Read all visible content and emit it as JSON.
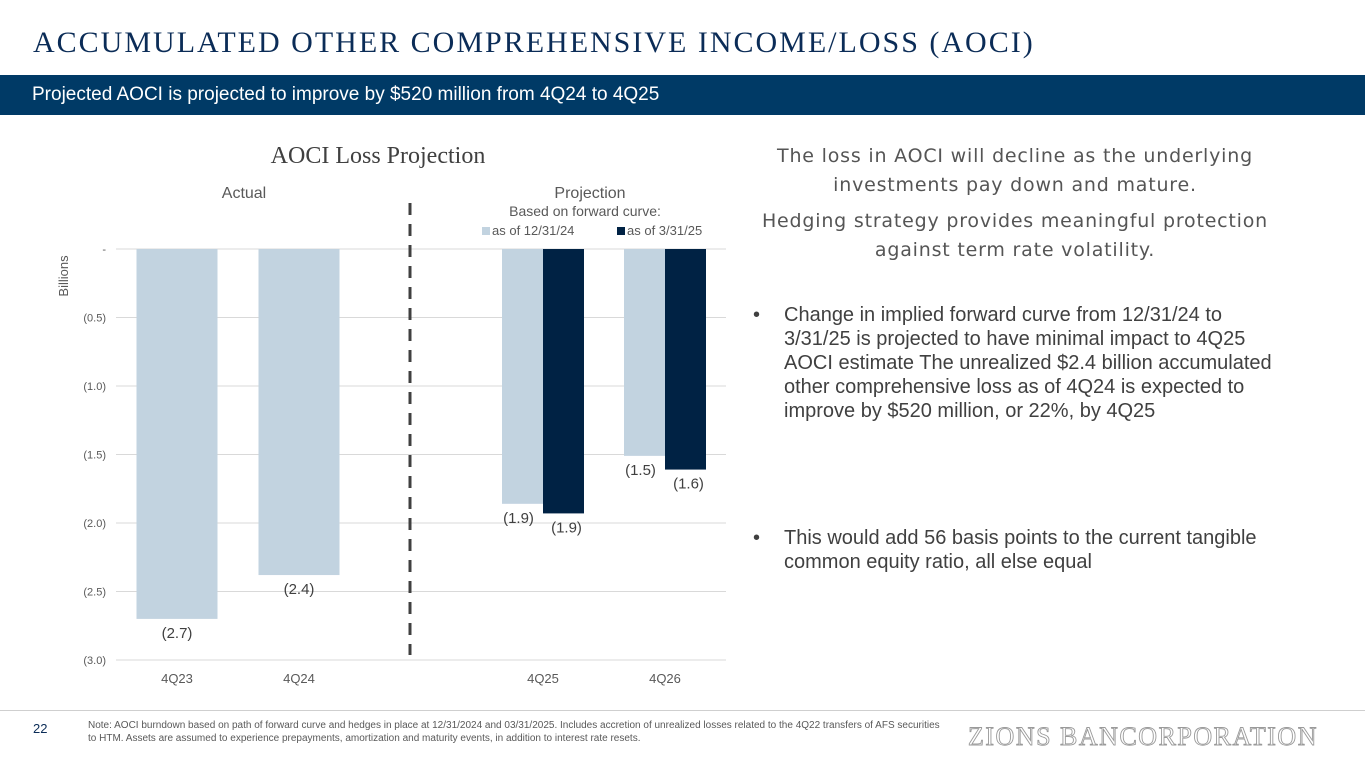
{
  "page": {
    "title": "ACCUMULATED OTHER COMPREHENSIVE INCOME/LOSS (AOCI)",
    "subtitle": "Projected AOCI is projected to improve by $520 million from 4Q24 to 4Q25",
    "page_number": "22",
    "footnote": "Note: AOCI burndown based on path of forward curve and hedges in place at 12/31/2024 and 03/31/2025. Includes accretion of unrealized losses related to the 4Q22 transfers of AFS securities to HTM. Assets are assumed to experience prepayments, amortization and maturity events, in addition to interest rate resets.",
    "logo_text": "ZIONS BANCORPORATION"
  },
  "right_panel": {
    "headline": "The loss in AOCI will decline as the underlying investments pay down and mature.",
    "subheadline": "Hedging strategy provides meaningful protection against term rate volatility.",
    "bullets": [
      "Change in implied forward curve from 12/31/24 to 3/31/25 is projected to have minimal impact to 4Q25 AOCI estimate The unrealized $2.4 billion accumulated other comprehensive loss as of 4Q24 is expected to improve by $520 million, or 22%, by 4Q25",
      "This would add 56 basis points to the current tangible common equity ratio, all else equal"
    ],
    "bullet_char": "•"
  },
  "chart_data": {
    "type": "bar",
    "title": "AOCI Loss Projection",
    "ylabel": "Billions",
    "ylim": [
      -3.0,
      0
    ],
    "yticks": [
      0,
      -0.5,
      -1.0,
      -1.5,
      -2.0,
      -2.5,
      -3.0
    ],
    "ytick_labels": [
      "-",
      "(0.5)",
      "(1.0)",
      "(1.5)",
      "(2.0)",
      "(2.5)",
      "(3.0)"
    ],
    "grid": true,
    "section_labels": {
      "actual": "Actual",
      "projection": "Projection"
    },
    "legend_title": "Based on forward curve:",
    "legend_placement": "top-right",
    "categories": [
      "4Q23",
      "4Q24",
      "4Q25",
      "4Q26"
    ],
    "actual": [
      {
        "category": "4Q23",
        "value": -2.7,
        "label": "(2.7)"
      },
      {
        "category": "4Q24",
        "value": -2.38,
        "label": "(2.4)"
      }
    ],
    "series": [
      {
        "name": "as of 12/31/24",
        "color": "#c2d3e0",
        "points": [
          {
            "category": "4Q25",
            "value": -1.86,
            "label": "(1.9)"
          },
          {
            "category": "4Q26",
            "value": -1.51,
            "label": "(1.5)"
          }
        ]
      },
      {
        "name": "as of 3/31/25",
        "color": "#002244",
        "points": [
          {
            "category": "4Q25",
            "value": -1.93,
            "label": "(1.9)"
          },
          {
            "category": "4Q26",
            "value": -1.61,
            "label": "(1.6)"
          }
        ]
      }
    ],
    "actual_color": "#c2d3e0",
    "divider_style": "dashed"
  }
}
